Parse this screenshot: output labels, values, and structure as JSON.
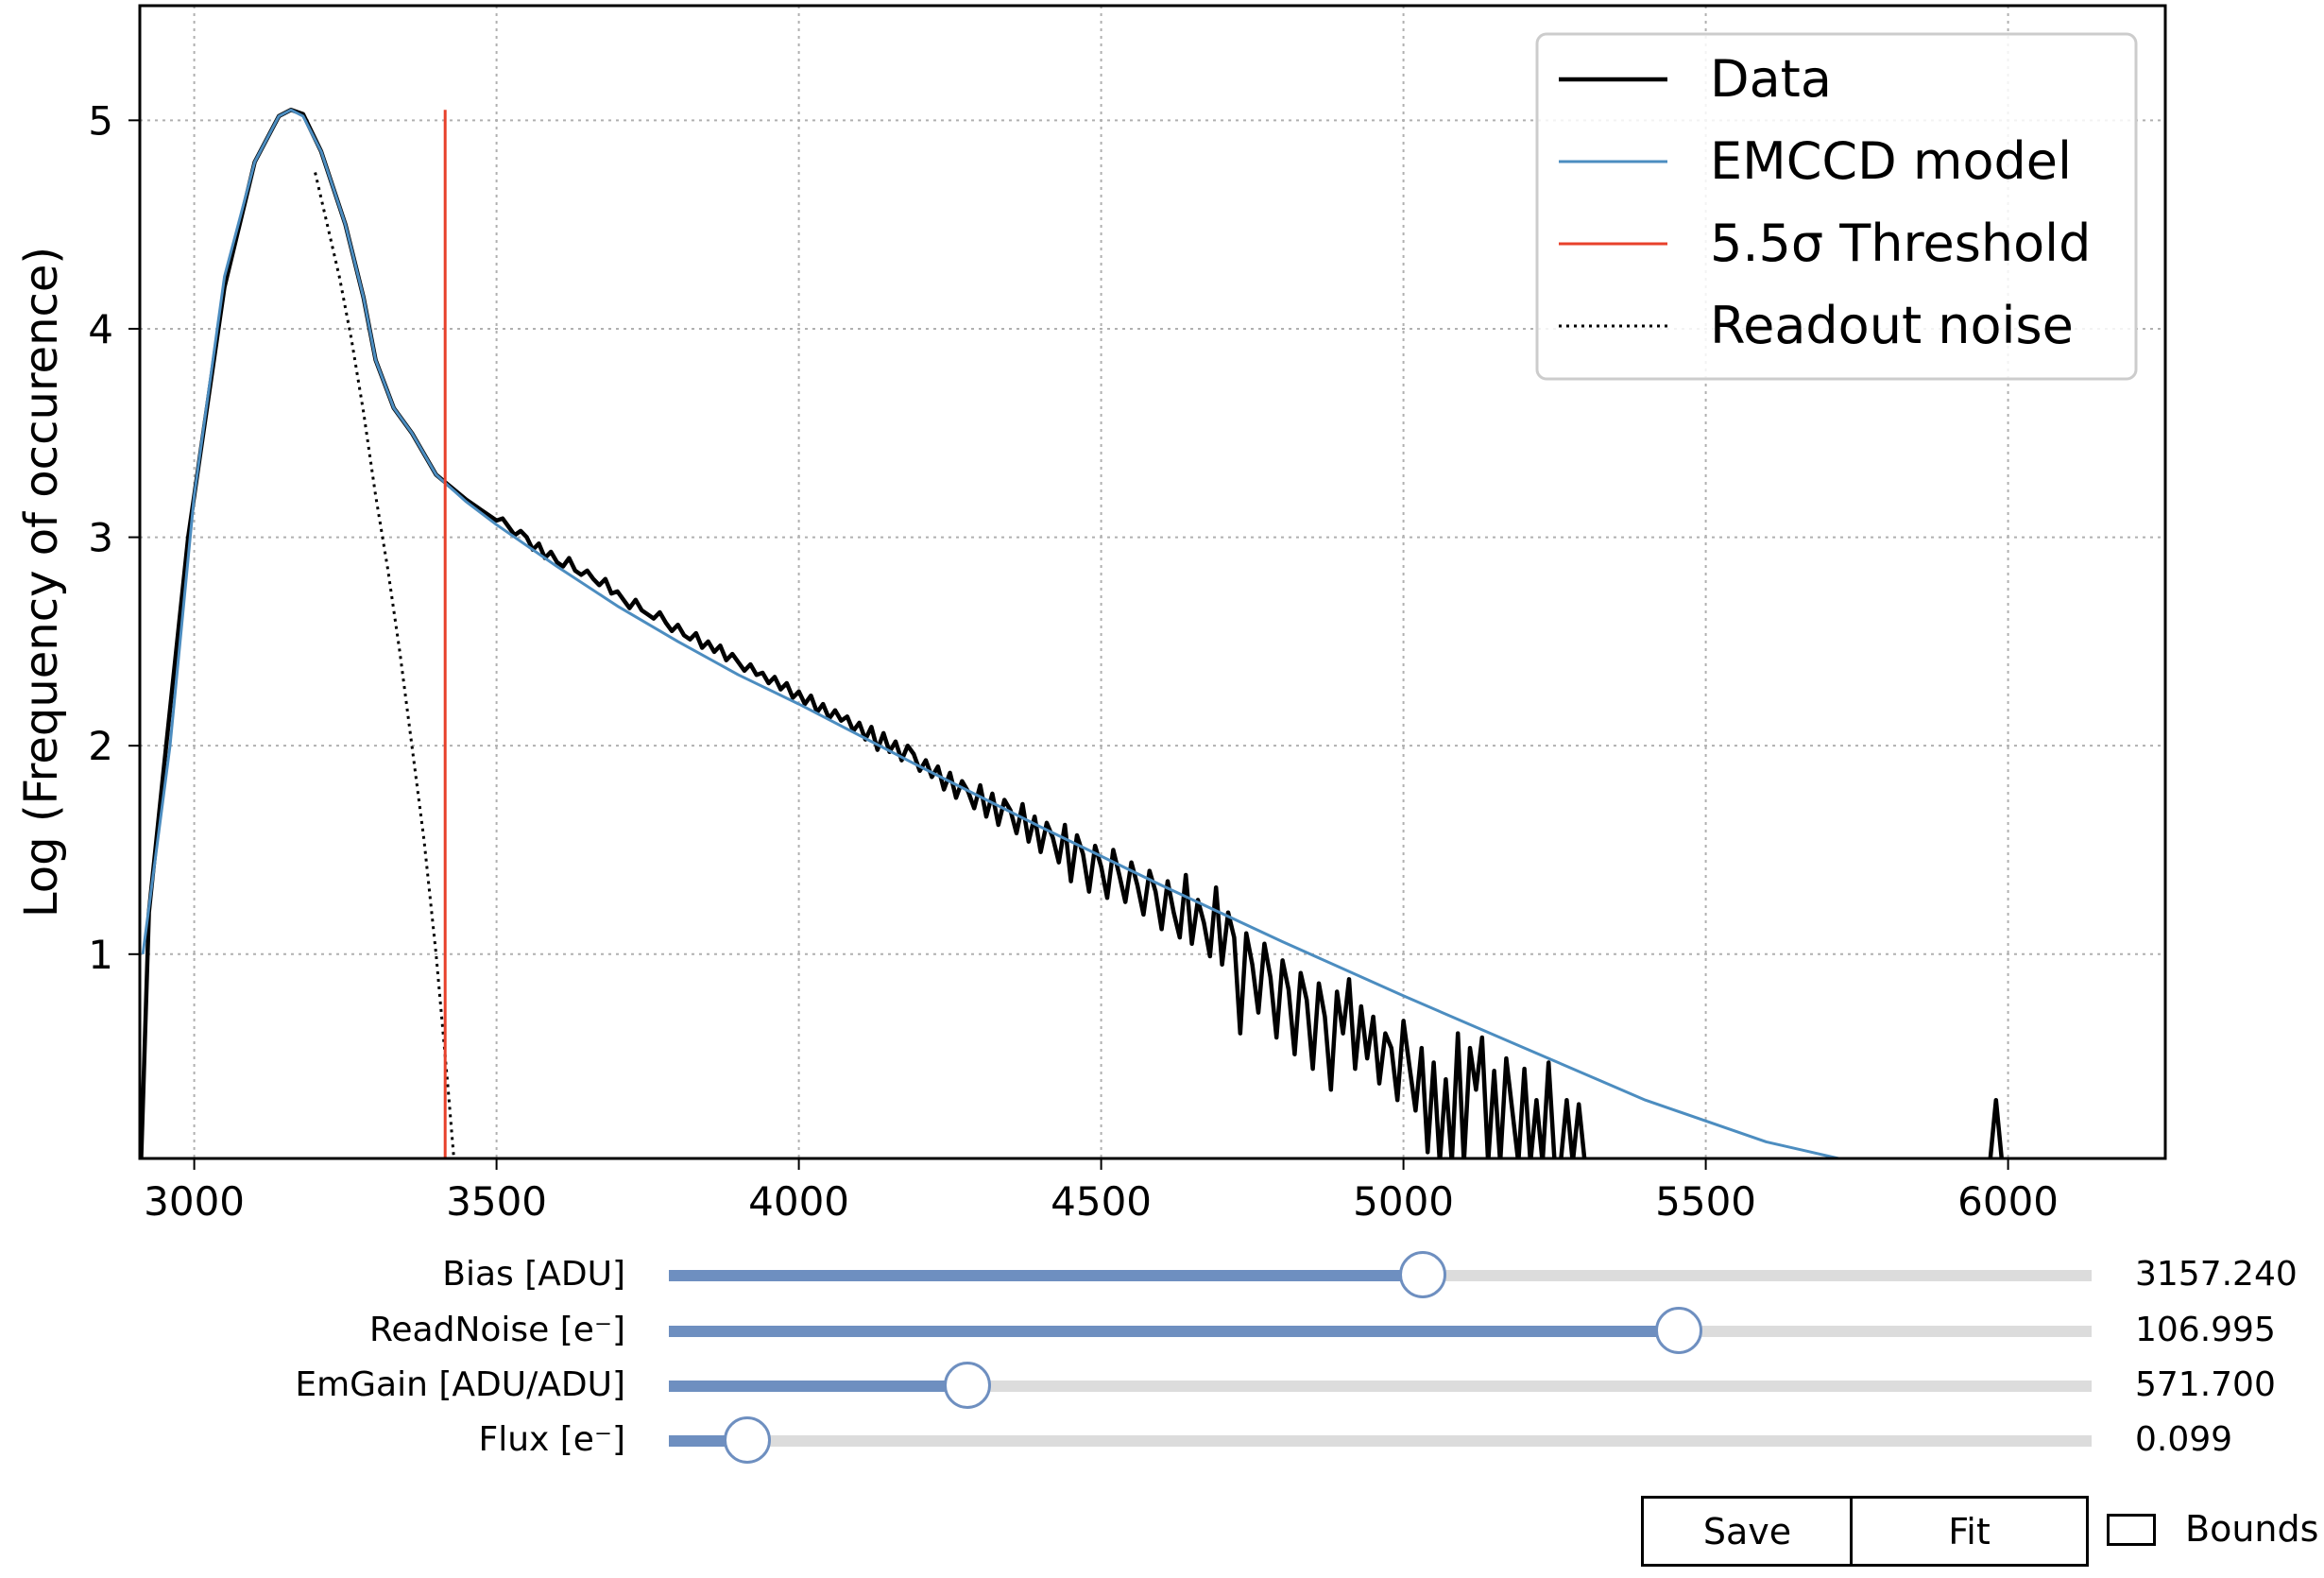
{
  "chart_data": {
    "type": "line",
    "ylabel": "Log (Frequency of occurence)",
    "xlim": [
      2910,
      6260
    ],
    "ylim": [
      0.02,
      5.55
    ],
    "xticks": [
      3000,
      3500,
      4000,
      4500,
      5000,
      5500,
      6000
    ],
    "yticks": [
      1,
      2,
      3,
      4,
      5
    ],
    "grid": true,
    "legend_position": "top-right",
    "legend": [
      {
        "label": "Data",
        "style": "solid",
        "color": "#000000"
      },
      {
        "label": "EMCCD model",
        "style": "solid",
        "color": "#4c8dc0"
      },
      {
        "label": "5.5σ Threshold",
        "style": "solid",
        "color": "#e8412b"
      },
      {
        "label": "Readout noise",
        "style": "dotted",
        "color": "#000000"
      }
    ],
    "threshold_x": 3415,
    "threshold_ymax": 5.05,
    "series": [
      {
        "name": "EMCCD model",
        "x": [
          2915,
          2960,
          3000,
          3050,
          3100,
          3140,
          3160,
          3180,
          3210,
          3250,
          3280,
          3300,
          3330,
          3360,
          3400,
          3450,
          3500,
          3600,
          3700,
          3800,
          3900,
          4000,
          4200,
          4400,
          4600,
          4800,
          5000,
          5200,
          5400,
          5600,
          5750
        ],
        "y": [
          1.0,
          2.0,
          3.2,
          4.25,
          4.8,
          5.02,
          5.05,
          5.02,
          4.85,
          4.5,
          4.15,
          3.85,
          3.62,
          3.5,
          3.3,
          3.17,
          3.06,
          2.86,
          2.67,
          2.5,
          2.34,
          2.2,
          1.9,
          1.61,
          1.33,
          1.06,
          0.8,
          0.55,
          0.3,
          0.1,
          0.0
        ]
      },
      {
        "name": "Readout noise",
        "x": [
          3200,
          3240,
          3260,
          3280,
          3300,
          3320,
          3340,
          3360,
          3380,
          3400,
          3420,
          3430
        ],
        "y": [
          4.75,
          4.25,
          3.95,
          3.6,
          3.2,
          2.85,
          2.45,
          2.0,
          1.55,
          1.0,
          0.35,
          0.0
        ]
      },
      {
        "name": "Data",
        "peak": {
          "x": [
            2912,
            2925,
            2950,
            2990,
            3050,
            3100,
            3140,
            3160,
            3180,
            3210,
            3250,
            3280,
            3300,
            3330,
            3360,
            3400,
            3450,
            3500
          ],
          "y": [
            0.0,
            1.2,
            1.9,
            3.0,
            4.2,
            4.8,
            5.02,
            5.05,
            5.03,
            4.85,
            4.5,
            4.15,
            3.85,
            3.62,
            3.5,
            3.3,
            3.18,
            3.08
          ]
        },
        "tail_x_start": 3500,
        "tail_x_step": 10,
        "tail_y": [
          3.09,
          3.05,
          3.01,
          3.03,
          3.0,
          2.94,
          2.97,
          2.9,
          2.93,
          2.88,
          2.86,
          2.9,
          2.84,
          2.82,
          2.84,
          2.8,
          2.77,
          2.8,
          2.73,
          2.74,
          2.7,
          2.66,
          2.7,
          2.65,
          2.63,
          2.61,
          2.64,
          2.59,
          2.55,
          2.58,
          2.53,
          2.51,
          2.54,
          2.47,
          2.5,
          2.45,
          2.48,
          2.41,
          2.44,
          2.4,
          2.36,
          2.39,
          2.34,
          2.35,
          2.3,
          2.33,
          2.27,
          2.3,
          2.23,
          2.26,
          2.2,
          2.24,
          2.16,
          2.2,
          2.13,
          2.17,
          2.12,
          2.14,
          2.07,
          2.11,
          2.03,
          2.09,
          1.98,
          2.06,
          1.97,
          2.02,
          1.93,
          2.0,
          1.96,
          1.88,
          1.93,
          1.85,
          1.9,
          1.79,
          1.87,
          1.75,
          1.83,
          1.78,
          1.7,
          1.81,
          1.66,
          1.77,
          1.62,
          1.74,
          1.69,
          1.58,
          1.72,
          1.54,
          1.66,
          1.49,
          1.63,
          1.56,
          1.44,
          1.62,
          1.35,
          1.57,
          1.48,
          1.3,
          1.52,
          1.42,
          1.27,
          1.5,
          1.38,
          1.25,
          1.44,
          1.33,
          1.19,
          1.4,
          1.3,
          1.12,
          1.35,
          1.2,
          1.08,
          1.38,
          1.05,
          1.26,
          1.15,
          0.99,
          1.32,
          0.95,
          1.2,
          1.08,
          0.62,
          1.1,
          0.95,
          0.72,
          1.05,
          0.89,
          0.6,
          0.97,
          0.83,
          0.52,
          0.91,
          0.78,
          0.45,
          0.86,
          0.7,
          0.35,
          0.82,
          0.62,
          0.88,
          0.45,
          0.75,
          0.5,
          0.7,
          0.38,
          0.62,
          0.55,
          0.3,
          0.68,
          0.46,
          0.25,
          0.55,
          0.05,
          0.48,
          0.0,
          0.4,
          0.0,
          0.62,
          0.0,
          0.55,
          0.35,
          0.6,
          0.0,
          0.44,
          0.0,
          0.5,
          0.25,
          0.0,
          0.45,
          0.0,
          0.3,
          0.0,
          0.48,
          0.0,
          0.0,
          0.3,
          0.0,
          0.28,
          0.0,
          0.0,
          0.0,
          0.0,
          0.0,
          0.0,
          0.0,
          0.0,
          0.0,
          0.0,
          0.0,
          0.0,
          0.0,
          0.0,
          0.0,
          0.0,
          0.0,
          0.0,
          0.0,
          0.0,
          0.0,
          0.0,
          0.0,
          0.0,
          0.0,
          0.0,
          0.0,
          0.0,
          0.0,
          0.0,
          0.0,
          0.0,
          0.0,
          0.0,
          0.0,
          0.0,
          0.0,
          0.0,
          0.0,
          0.0,
          0.0,
          0.0,
          0.0,
          0.0,
          0.0,
          0.0,
          0.0,
          0.0,
          0.0,
          0.0,
          0.0,
          0.0,
          0.0,
          0.0,
          0.0,
          0.0,
          0.0,
          0.0,
          0.0,
          0.0,
          0.0,
          0.0,
          0.0,
          0.0,
          0.0,
          0.0,
          0.0,
          0.0,
          0.3,
          0.0,
          0.0
        ]
      }
    ]
  },
  "sliders": [
    {
      "label": "Bias [ADU]",
      "value": "3157.240",
      "level": 0.53
    },
    {
      "label": "ReadNoise [e⁻]",
      "value": "106.995",
      "level": 0.71
    },
    {
      "label": "EmGain [ADU/ADU]",
      "value": "571.700",
      "level": 0.21
    },
    {
      "label": "Flux [e⁻]",
      "value": "0.099",
      "level": 0.055
    }
  ],
  "buttons": {
    "save_label": "Save",
    "fit_label": "Fit"
  },
  "checkbox": {
    "bounds_label": "Bounds",
    "checked": false
  },
  "colors": {
    "data": "#000000",
    "model": "#4c8dc0",
    "threshold": "#e8412b",
    "slider": "#6e8fc0",
    "grid": "#b0b0b0"
  }
}
